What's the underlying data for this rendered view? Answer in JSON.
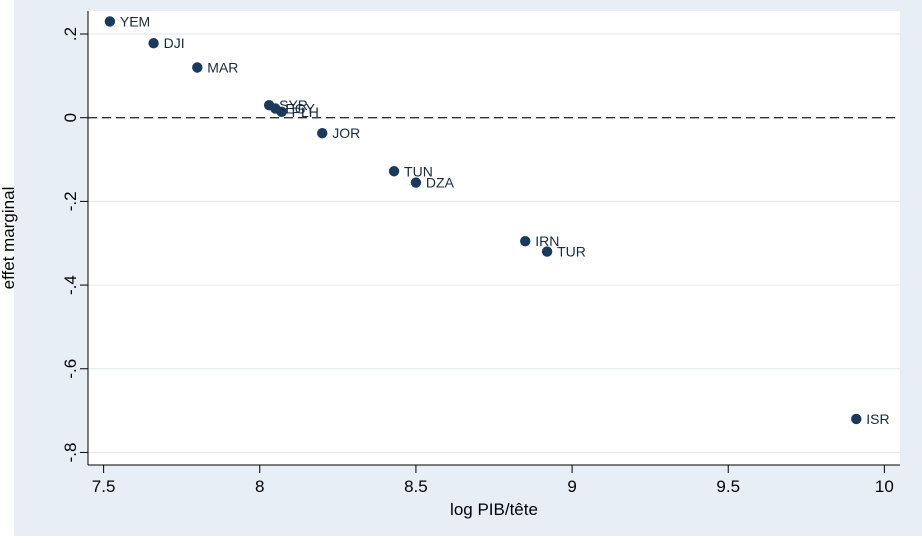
{
  "chart_data": {
    "type": "scatter",
    "title": "",
    "xlabel": "log PIB/tête",
    "ylabel": "effet marginal",
    "xlim": [
      7.45,
      10.05
    ],
    "ylim": [
      -0.83,
      0.255
    ],
    "xticks": [
      7.5,
      8,
      8.5,
      9,
      9.5,
      10
    ],
    "xtick_labels": [
      "7.5",
      "8",
      "8.5",
      "9",
      "9.5",
      "10"
    ],
    "yticks": [
      0.2,
      0,
      -0.2,
      -0.4,
      -0.6,
      -0.8
    ],
    "ytick_labels": [
      ".2",
      "0",
      "-.2",
      "-.4",
      "-.6",
      "-.8"
    ],
    "grid": true,
    "reference_line": {
      "y": 0,
      "style": "dashed"
    },
    "marker_color": "#1a3a5c",
    "background_outer": "#e7eef5",
    "background_plot": "#ffffff",
    "gridline_color": "#e6ecf1",
    "points": [
      {
        "label": "YEM",
        "x": 7.52,
        "y": 0.23
      },
      {
        "label": "DJI",
        "x": 7.66,
        "y": 0.178
      },
      {
        "label": "MAR",
        "x": 7.8,
        "y": 0.12
      },
      {
        "label": "SYR",
        "x": 8.03,
        "y": 0.03
      },
      {
        "label": "EGY",
        "x": 8.05,
        "y": 0.022
      },
      {
        "label": "PLH",
        "x": 8.07,
        "y": 0.014
      },
      {
        "label": "JOR",
        "x": 8.2,
        "y": -0.037
      },
      {
        "label": "TUN",
        "x": 8.43,
        "y": -0.128
      },
      {
        "label": "DZA",
        "x": 8.5,
        "y": -0.155
      },
      {
        "label": "IRN",
        "x": 8.85,
        "y": -0.295
      },
      {
        "label": "TUR",
        "x": 8.92,
        "y": -0.32
      },
      {
        "label": "ISR",
        "x": 9.91,
        "y": -0.72
      }
    ]
  }
}
